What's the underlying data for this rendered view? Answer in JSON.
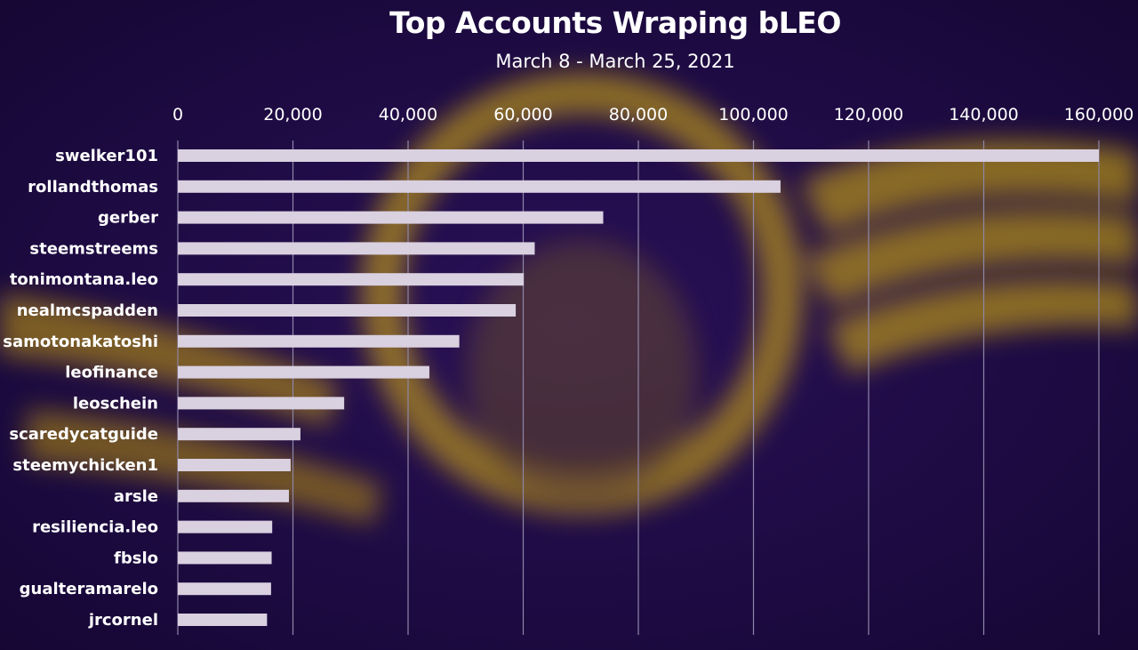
{
  "chart_data": {
    "type": "bar",
    "orientation": "horizontal",
    "title": "Top Accounts Wraping bLEO",
    "subtitle": "March 8 - March 25, 2021",
    "categories": [
      "swelker101",
      "rollandthomas",
      "gerber",
      "steemstreems",
      "tonimontana.leo",
      "nealmcspadden",
      "samotonakatoshi",
      "leofinance",
      "leoschein",
      "scaredycatguide",
      "steemychicken1",
      "arsle",
      "resiliencia.leo",
      "fbslo",
      "gualteramarelo",
      "jrcornel"
    ],
    "values": [
      160000,
      104700,
      73900,
      62000,
      60100,
      58700,
      48900,
      43700,
      28900,
      21300,
      19600,
      19300,
      16400,
      16300,
      16200,
      15500
    ],
    "xlim": [
      0,
      160000
    ],
    "x_ticks": [
      "0",
      "20,000",
      "40,000",
      "60,000",
      "80,000",
      "100,000",
      "120,000",
      "140,000",
      "160,000"
    ],
    "x_axis_position": "top",
    "grid": true,
    "bar_color": "#d9d0e0",
    "background_color": "#1f0c4a",
    "accent_color": "#e0b810"
  }
}
